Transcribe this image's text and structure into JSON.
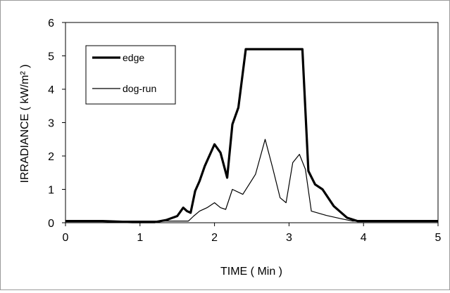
{
  "chart_data": {
    "type": "line",
    "xlabel": "TIME ( Min )",
    "ylabel": "IRRADIANCE ( kW/m² )",
    "xlim": [
      0,
      5
    ],
    "ylim": [
      0,
      6
    ],
    "x_ticks": [
      "0",
      "1",
      "2",
      "3",
      "4",
      "5"
    ],
    "y_ticks": [
      "0",
      "1",
      "2",
      "3",
      "4",
      "5",
      "6"
    ],
    "grid": false,
    "legend_position": "top-left",
    "series": [
      {
        "name": "edge",
        "color": "#000000",
        "style": "thick",
        "x": [
          0,
          0.5,
          0.9,
          1.2,
          1.35,
          1.5,
          1.58,
          1.63,
          1.68,
          1.74,
          1.8,
          1.87,
          2.0,
          2.08,
          2.17,
          2.24,
          2.32,
          2.42,
          3.18,
          3.26,
          3.35,
          3.45,
          3.6,
          3.78,
          3.92,
          5.0
        ],
        "y": [
          0.05,
          0.05,
          0.02,
          0.02,
          0.08,
          0.2,
          0.45,
          0.35,
          0.3,
          0.95,
          1.25,
          1.7,
          2.35,
          2.1,
          1.35,
          2.95,
          3.45,
          5.2,
          5.2,
          1.55,
          1.15,
          1.0,
          0.5,
          0.15,
          0.05,
          0.05
        ]
      },
      {
        "name": "dog-run",
        "color": "#000000",
        "style": "thin",
        "x": [
          0,
          1.4,
          1.5,
          1.65,
          1.72,
          1.8,
          1.9,
          2.0,
          2.08,
          2.15,
          2.24,
          2.38,
          2.55,
          2.68,
          2.78,
          2.88,
          2.96,
          3.05,
          3.14,
          3.22,
          3.3,
          3.5,
          3.7,
          3.85,
          5.0
        ],
        "y": [
          0.05,
          0.05,
          0.05,
          0.05,
          0.2,
          0.35,
          0.45,
          0.6,
          0.45,
          0.4,
          1.0,
          0.85,
          1.45,
          2.5,
          1.65,
          0.75,
          0.6,
          1.8,
          2.05,
          1.6,
          0.35,
          0.22,
          0.12,
          0.05,
          0.05
        ]
      }
    ]
  }
}
